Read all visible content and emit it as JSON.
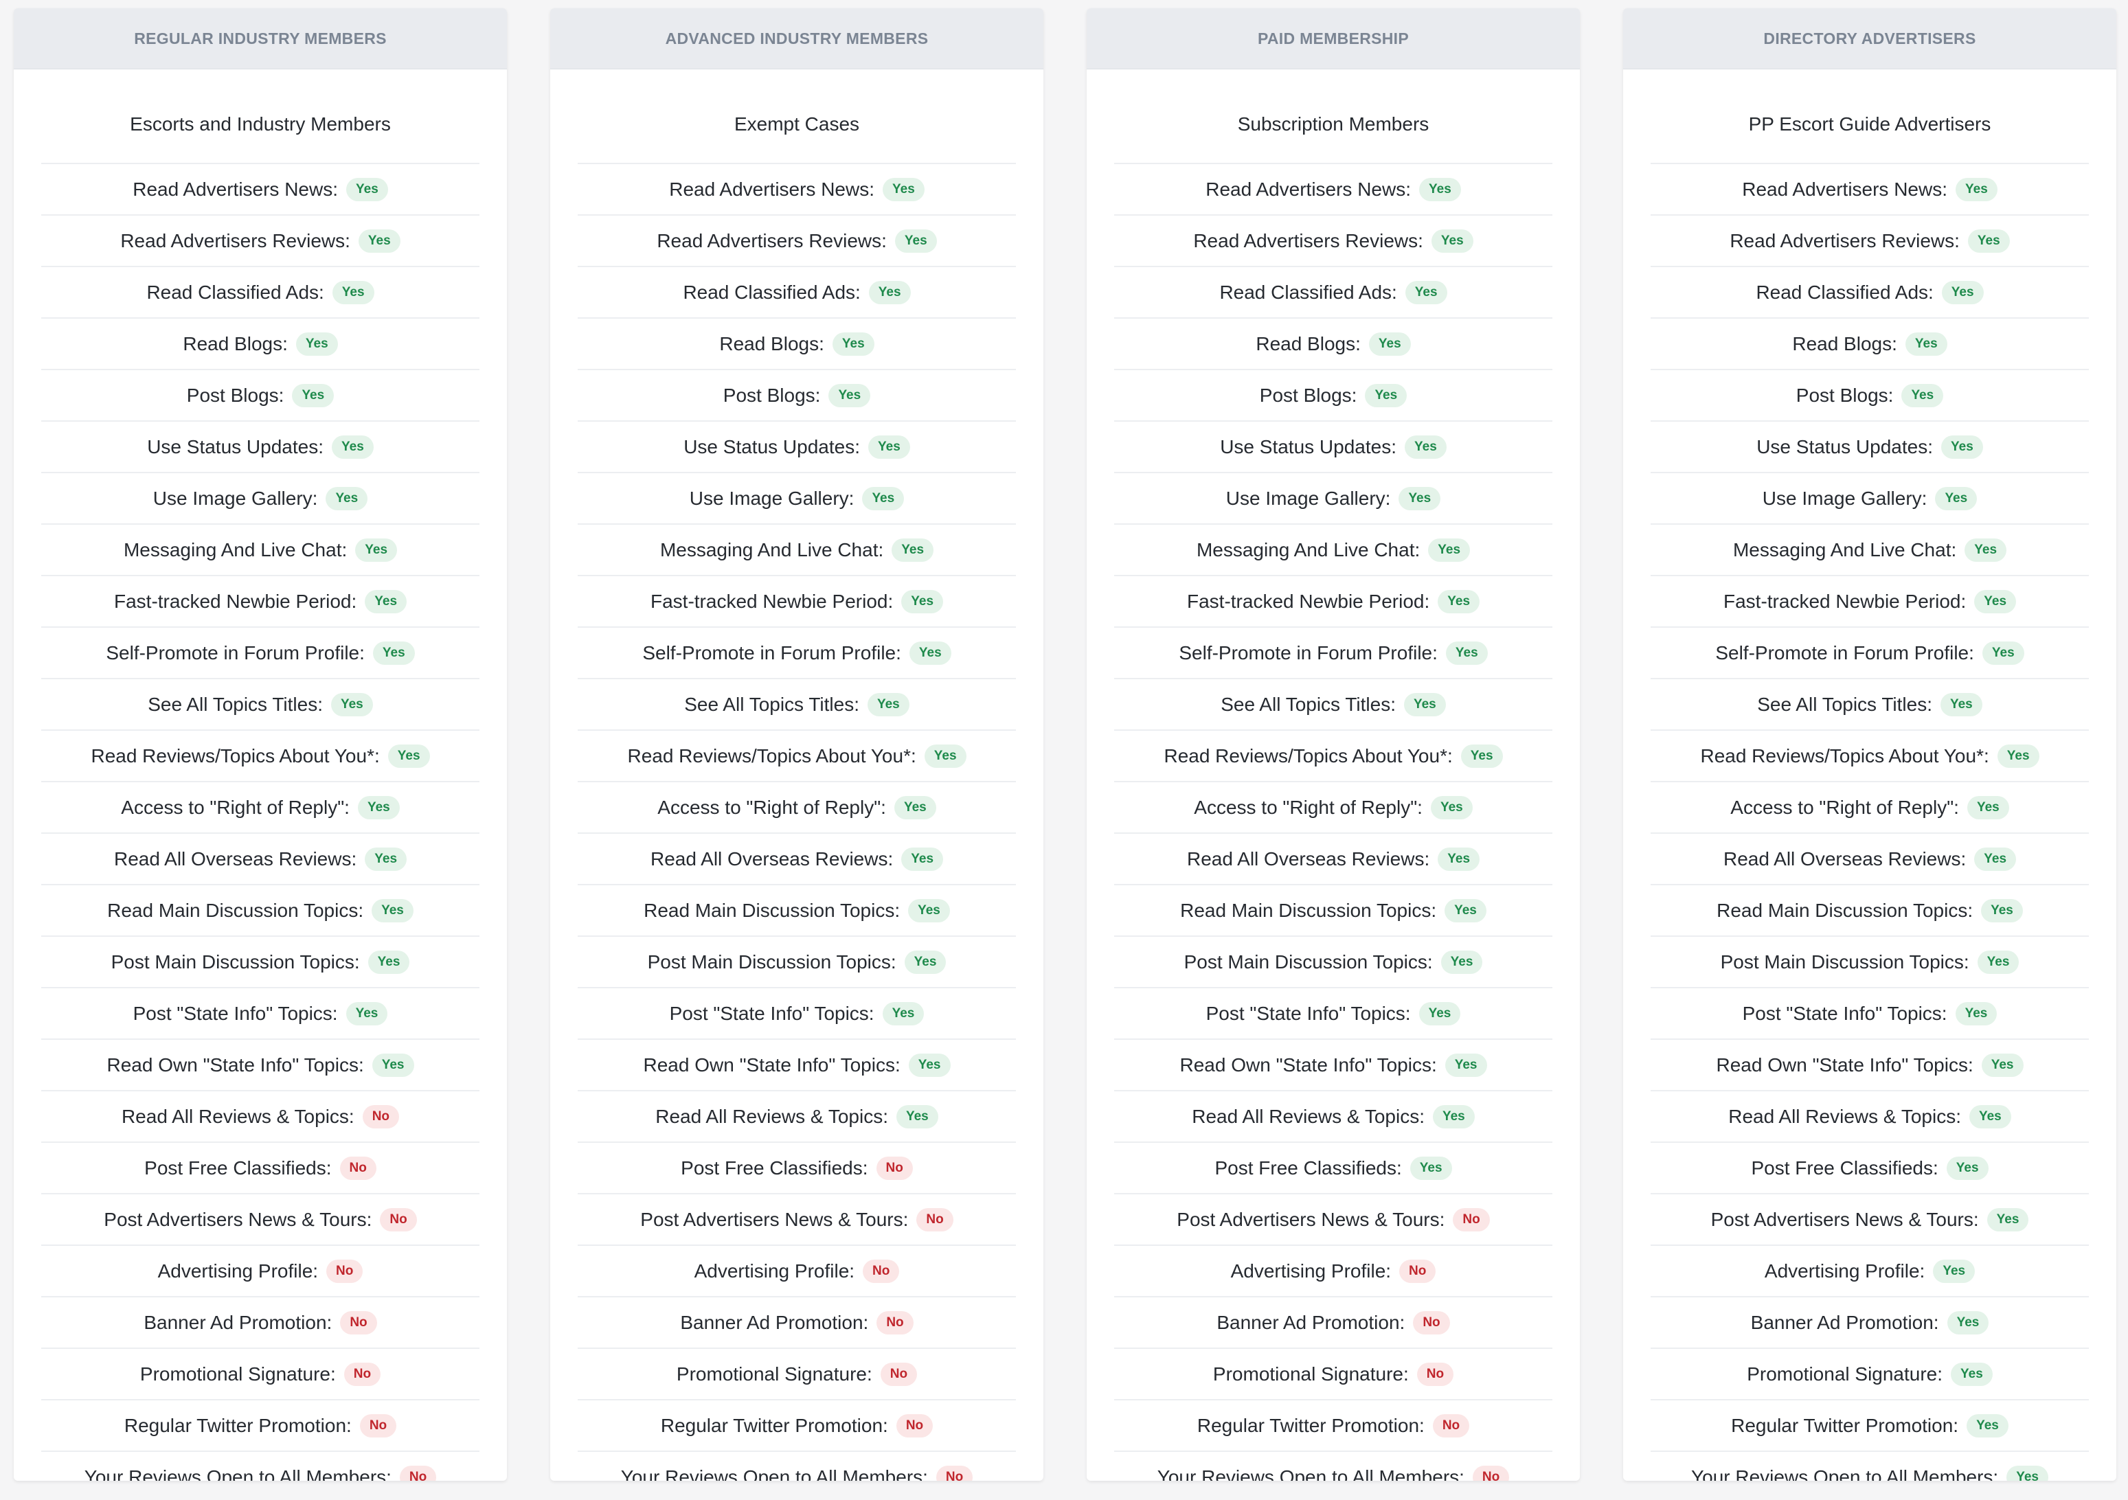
{
  "features": [
    "Read Advertisers News:",
    "Read Advertisers Reviews:",
    "Read Classified Ads:",
    "Read Blogs:",
    "Post Blogs:",
    "Use Status Updates:",
    "Use Image Gallery:",
    "Messaging And Live Chat:",
    "Fast-tracked Newbie Period:",
    "Self-Promote in Forum Profile:",
    "See All Topics Titles:",
    "Read Reviews/Topics About You*:",
    "Access to \"Right of Reply\":",
    "Read All Overseas Reviews:",
    "Read Main Discussion Topics:",
    "Post Main Discussion Topics:",
    "Post \"State Info\" Topics:",
    "Read Own \"State Info\" Topics:",
    "Read All Reviews & Topics:",
    "Post Free Classifieds:",
    "Post Advertisers News & Tours:",
    "Advertising Profile:",
    "Banner Ad Promotion:",
    "Promotional Signature:",
    "Regular Twitter Promotion:",
    "Your Reviews Open to All Members:"
  ],
  "colors": {
    "yes_bg": "#e4f3e9",
    "yes_text": "#1f8a4c",
    "no_bg": "#fbe6e6",
    "no_text": "#c0262d",
    "header_bg": "#e9ebef",
    "header_text": "#7b8593"
  },
  "columns": [
    {
      "header": "REGULAR INDUSTRY MEMBERS",
      "subtitle": "Escorts and Industry Members",
      "values": [
        "Yes",
        "Yes",
        "Yes",
        "Yes",
        "Yes",
        "Yes",
        "Yes",
        "Yes",
        "Yes",
        "Yes",
        "Yes",
        "Yes",
        "Yes",
        "Yes",
        "Yes",
        "Yes",
        "Yes",
        "Yes",
        "No",
        "No",
        "No",
        "No",
        "No",
        "No",
        "No",
        "No"
      ]
    },
    {
      "header": "ADVANCED INDUSTRY MEMBERS",
      "subtitle": "Exempt Cases",
      "values": [
        "Yes",
        "Yes",
        "Yes",
        "Yes",
        "Yes",
        "Yes",
        "Yes",
        "Yes",
        "Yes",
        "Yes",
        "Yes",
        "Yes",
        "Yes",
        "Yes",
        "Yes",
        "Yes",
        "Yes",
        "Yes",
        "Yes",
        "No",
        "No",
        "No",
        "No",
        "No",
        "No",
        "No"
      ]
    },
    {
      "header": "PAID MEMBERSHIP",
      "subtitle": "Subscription Members",
      "values": [
        "Yes",
        "Yes",
        "Yes",
        "Yes",
        "Yes",
        "Yes",
        "Yes",
        "Yes",
        "Yes",
        "Yes",
        "Yes",
        "Yes",
        "Yes",
        "Yes",
        "Yes",
        "Yes",
        "Yes",
        "Yes",
        "Yes",
        "Yes",
        "No",
        "No",
        "No",
        "No",
        "No",
        "No"
      ]
    },
    {
      "header": "DIRECTORY ADVERTISERS",
      "subtitle": "PP Escort Guide Advertisers",
      "values": [
        "Yes",
        "Yes",
        "Yes",
        "Yes",
        "Yes",
        "Yes",
        "Yes",
        "Yes",
        "Yes",
        "Yes",
        "Yes",
        "Yes",
        "Yes",
        "Yes",
        "Yes",
        "Yes",
        "Yes",
        "Yes",
        "Yes",
        "Yes",
        "Yes",
        "Yes",
        "Yes",
        "Yes",
        "Yes",
        "Yes"
      ]
    }
  ]
}
